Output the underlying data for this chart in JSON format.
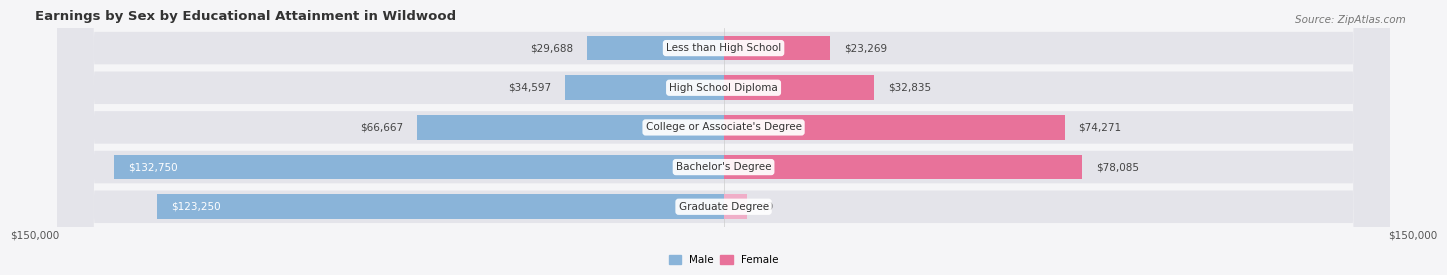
{
  "title": "Earnings by Sex by Educational Attainment in Wildwood",
  "source": "Source: ZipAtlas.com",
  "categories": [
    "Less than High School",
    "High School Diploma",
    "College or Associate's Degree",
    "Bachelor's Degree",
    "Graduate Degree"
  ],
  "male_values": [
    29688,
    34597,
    66667,
    132750,
    123250
  ],
  "female_values": [
    23269,
    32835,
    74271,
    78085,
    0
  ],
  "male_color": "#8ab4d9",
  "female_color_normal": "#e8729a",
  "female_color_light": "#f0aec8",
  "male_label": "Male",
  "female_label": "Female",
  "x_min": -150000,
  "x_max": 150000,
  "bar_height": 0.62,
  "row_bg_color": "#e8e8ec",
  "title_fontsize": 9.5,
  "source_fontsize": 7.5,
  "value_fontsize": 7.5,
  "cat_fontsize": 7.5,
  "tick_fontsize": 7.5,
  "male_inside_threshold": 80000,
  "female_inside_threshold": 999999
}
